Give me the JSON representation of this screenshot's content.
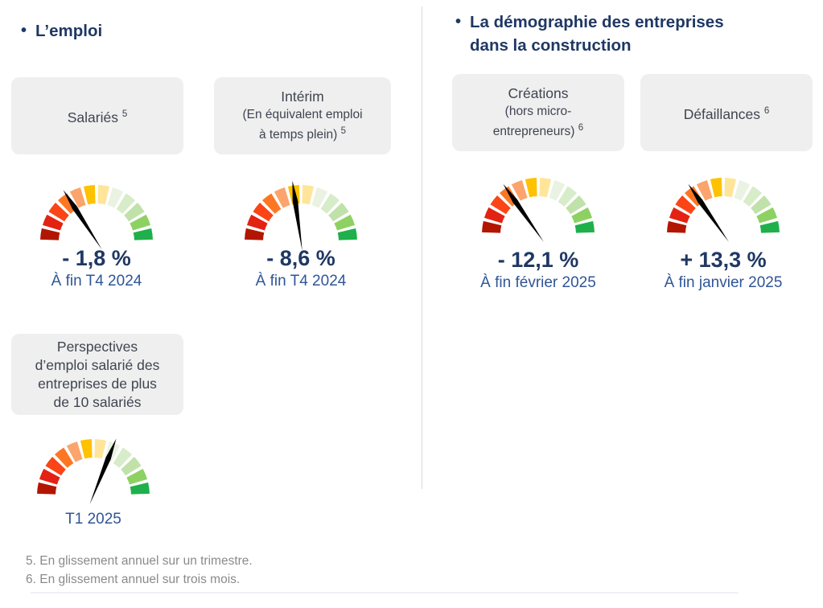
{
  "sections": {
    "left": {
      "title": "L’emploi"
    },
    "right": {
      "title_line1": "La démographie des entreprises",
      "title_line2": "dans la construction"
    }
  },
  "cards": {
    "salaries": {
      "line1": "Salariés",
      "sup": "5"
    },
    "interim": {
      "line1": "Intérim",
      "line2": "(En équivalent emploi",
      "line3": "à temps plein)",
      "sup": "5"
    },
    "perspectives": {
      "line1": "Perspectives",
      "line2": "d’emploi salarié des",
      "line3": "entreprises de plus",
      "line4": "de 10 salariés"
    },
    "creations": {
      "line1": "Créations",
      "line2": "(hors micro-",
      "line3": "entrepreneurs)",
      "sup": "6"
    },
    "defaillances": {
      "line1": "Défaillances",
      "sup": "6"
    }
  },
  "chart_data": {
    "type": "gauge",
    "scale": {
      "segments": 12,
      "arc_degrees": 180,
      "colors_left_to_right": [
        "#b21600",
        "#e32213",
        "#fb4516",
        "#fd7723",
        "#fca46c",
        "#fec200",
        "#ffe59a",
        "#eaf3e2",
        "#d7ecc8",
        "#c0e1aa",
        "#8ed163",
        "#1fb04b"
      ],
      "needle_color": "#000000"
    },
    "gauges": [
      {
        "id": "salaries",
        "title": "Salariés",
        "footnote_ref": "5",
        "value_label": "- 1,8 %",
        "value_pct": -1.8,
        "period": "À fin T4 2024",
        "needle_deg_from_vertical": -33
      },
      {
        "id": "interim",
        "title": "Intérim (En équivalent emploi à temps plein)",
        "footnote_ref": "5",
        "value_label": "- 8,6 %",
        "value_pct": -8.6,
        "period": "À fin T4 2024",
        "needle_deg_from_vertical": -8
      },
      {
        "id": "perspectives",
        "title": "Perspectives d’emploi salarié des entreprises de plus de 10 salariés",
        "footnote_ref": "",
        "value_label": "",
        "value_pct": null,
        "period": "T1 2025",
        "needle_deg_from_vertical": 22
      },
      {
        "id": "creations",
        "title": "Créations (hors micro-entrepreneurs)",
        "footnote_ref": "6",
        "value_label": "- 12,1 %",
        "value_pct": -12.1,
        "period": "À fin février 2025",
        "needle_deg_from_vertical": -35
      },
      {
        "id": "defaillances",
        "title": "Défaillances",
        "footnote_ref": "6",
        "value_label": "+ 13,3 %",
        "value_pct": 13.3,
        "period": "À fin janvier 2025",
        "needle_deg_from_vertical": -35
      }
    ]
  },
  "footnotes": {
    "note5": "5. En glissement annuel sur un trimestre.",
    "note6": "6. En glissement annuel sur trois mois."
  },
  "colors": {
    "navy_title": "#1f3864",
    "value_navy": "#1f3864",
    "date_blue": "#2f5597",
    "card_bg": "#efefef",
    "card_text": "#3f4450",
    "footnote_gray": "#8a8a8a",
    "divider_gray": "#d9d9d9"
  }
}
